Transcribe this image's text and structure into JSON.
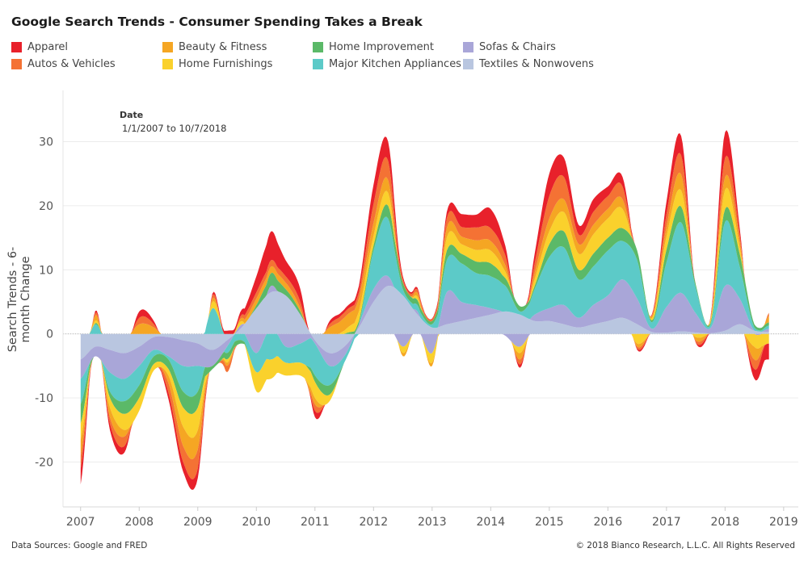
{
  "title": "Google Search Trends - Consumer Spending Takes a Break",
  "filter": {
    "label": "Date",
    "range": "1/1/2007 to 10/7/2018"
  },
  "footer": {
    "source": "Data Sources: Google and FRED",
    "copyright": "© 2018 Bianco Research, L.L.C. All Rights Reserved"
  },
  "legend": [
    {
      "name": "Apparel",
      "color": "#e8212b"
    },
    {
      "name": "Autos & Vehicles",
      "color": "#f47234"
    },
    {
      "name": "Beauty & Fitness",
      "color": "#f5a623"
    },
    {
      "name": "Home Furnishings",
      "color": "#fad12c"
    },
    {
      "name": "Home Improvement",
      "color": "#5bb968"
    },
    {
      "name": "Major Kitchen Appliances",
      "color": "#5ccac8"
    },
    {
      "name": "Sofas & Chairs",
      "color": "#a9a6d8"
    },
    {
      "name": "Textiles & Nonwovens",
      "color": "#b9c6e0"
    }
  ],
  "chart_data": {
    "type": "area",
    "stacking": "diverging",
    "title": "Google Search Trends - Consumer Spending Takes a Break",
    "xlabel": "",
    "ylabel": "Search Trends - 6-month Change",
    "xlim": [
      2006.7,
      2019.25
    ],
    "ylim": [
      -27,
      38
    ],
    "xticks": [
      2007,
      2008,
      2009,
      2010,
      2011,
      2012,
      2013,
      2014,
      2015,
      2016,
      2017,
      2018,
      2019
    ],
    "yticks": [
      -20,
      -10,
      0,
      10,
      20,
      30
    ],
    "grid": true,
    "legend_position": "top",
    "x": [
      2007.0,
      2007.25,
      2007.5,
      2007.75,
      2008.0,
      2008.25,
      2008.5,
      2008.75,
      2009.0,
      2009.25,
      2009.5,
      2009.75,
      2010.0,
      2010.25,
      2010.5,
      2010.75,
      2011.0,
      2011.25,
      2011.5,
      2011.75,
      2012.0,
      2012.25,
      2012.5,
      2012.75,
      2013.0,
      2013.25,
      2013.5,
      2013.75,
      2014.0,
      2014.25,
      2014.5,
      2014.75,
      2015.0,
      2015.25,
      2015.5,
      2015.75,
      2016.0,
      2016.25,
      2016.5,
      2016.75,
      2017.0,
      2017.25,
      2017.5,
      2017.75,
      2018.0,
      2018.25,
      2018.5,
      2018.75
    ],
    "series": [
      {
        "name": "Textiles & Nonwovens",
        "values": [
          -4,
          -2,
          -2.5,
          -3,
          -2,
          -0.5,
          -0.5,
          -1,
          -1.5,
          -2.5,
          -1,
          1,
          4,
          6.5,
          6,
          3,
          -1,
          -3,
          -2,
          1,
          5,
          7.5,
          6,
          3,
          1,
          1.5,
          2,
          2.5,
          3,
          3.5,
          3,
          2,
          2,
          1.5,
          1,
          1.5,
          2,
          2.5,
          1.5,
          0.3,
          0.2,
          0.4,
          0.2,
          0.1,
          0.5,
          1.5,
          0.5,
          0.3
        ]
      },
      {
        "name": "Sofas & Chairs",
        "values": [
          -3,
          -1.5,
          -3.5,
          -4,
          -3,
          -2,
          -3,
          -4,
          -3.5,
          -2.5,
          -1,
          0.5,
          -3,
          1,
          -2,
          -1.5,
          -0.5,
          -2,
          -1.5,
          0.5,
          2,
          1.5,
          -2,
          0.5,
          -3,
          5,
          3,
          2,
          1,
          -0.3,
          -2,
          1,
          2,
          3,
          1.5,
          3,
          4,
          6,
          4,
          0.5,
          4,
          6,
          3,
          0.8,
          7,
          4,
          0,
          0.5
        ]
      },
      {
        "name": "Major Kitchen Appliances",
        "values": [
          -4,
          1.5,
          -3,
          -3.5,
          -3,
          -1,
          -0.5,
          -4,
          -4,
          4,
          -1,
          -1,
          -3,
          -4,
          -2.5,
          -3,
          -5,
          -3,
          -1,
          0,
          6,
          9,
          1,
          1,
          0.5,
          5,
          6,
          5,
          5,
          4,
          0.5,
          4,
          8,
          9,
          6,
          6,
          7,
          6,
          6,
          1,
          7,
          11,
          4,
          0.5,
          10,
          5,
          0.5,
          0.5
        ]
      },
      {
        "name": "Home Improvement",
        "values": [
          -3,
          0.2,
          -1,
          -2,
          -2,
          -1.2,
          -1.5,
          -2.5,
          -2.5,
          -0.5,
          -1,
          -0.5,
          0.5,
          2,
          1,
          0.5,
          -1,
          -1.5,
          0,
          0.5,
          0.8,
          2,
          1,
          0.8,
          0.5,
          1.5,
          1.5,
          1.8,
          2,
          1.2,
          0.8,
          0.5,
          2,
          2.5,
          1.5,
          2,
          2,
          2,
          1.5,
          0.3,
          2,
          2.5,
          0.5,
          0.3,
          2,
          2,
          0.5,
          0.5
        ]
      },
      {
        "name": "Home Furnishings",
        "values": [
          -2.5,
          0.4,
          -1.5,
          -2.5,
          -2,
          -1,
          -1,
          -3,
          -3.5,
          1,
          -0.5,
          0.5,
          -3,
          -3,
          -2,
          -2,
          -2.5,
          -1,
          0.5,
          1.5,
          1.5,
          2,
          -1,
          0.5,
          -1.5,
          2,
          1.5,
          1.8,
          2,
          1,
          -1,
          1,
          2,
          3,
          2.5,
          3,
          3,
          3,
          -1.5,
          0.3,
          2,
          2.5,
          -0.5,
          0.3,
          3,
          1,
          -2,
          -1.5
        ]
      },
      {
        "name": "Beauty & Fitness",
        "values": [
          -2.5,
          0.8,
          -1.5,
          -1,
          1.5,
          1,
          -1.2,
          -3,
          -3,
          0.5,
          -0.5,
          0.5,
          1,
          1,
          1,
          0.5,
          -1,
          1,
          2,
          2,
          2,
          2,
          -0.5,
          0.6,
          -0.5,
          1.5,
          1.2,
          1.5,
          1.5,
          1,
          -1,
          1,
          2,
          2,
          1.5,
          1.5,
          1.5,
          1.5,
          -0.5,
          0.3,
          1.5,
          2.5,
          -0.5,
          0.2,
          2,
          1,
          -2,
          1
        ]
      },
      {
        "name": "Autos & Vehicles",
        "values": [
          -2,
          0.4,
          -1,
          -1.5,
          1,
          0.5,
          -1.5,
          -2.5,
          -3,
          0.5,
          -1,
          0.5,
          1,
          1,
          1,
          1,
          -1,
          0.5,
          0.8,
          1,
          3,
          3,
          0.5,
          0.5,
          0.3,
          1.5,
          1.5,
          2,
          2,
          1.5,
          -0.8,
          1.5,
          3.5,
          3.5,
          1.5,
          2,
          2,
          2,
          -0.3,
          0.2,
          2,
          3,
          -0.3,
          0.2,
          3,
          1,
          -1.5,
          0.5
        ]
      },
      {
        "name": "Apparel",
        "values": [
          -2.5,
          0.3,
          -1,
          -1,
          1,
          0.5,
          -1,
          -1.5,
          -1.5,
          0.3,
          0.5,
          0.8,
          2.5,
          4.5,
          2.5,
          2,
          -1,
          0.5,
          0.5,
          1,
          3,
          3,
          0.5,
          0.3,
          0.1,
          1,
          2,
          2,
          3,
          1.5,
          -0.5,
          1.5,
          3.5,
          3,
          1.5,
          2,
          1.5,
          1.5,
          -0.2,
          0.1,
          2,
          3,
          -0.1,
          0.1,
          4,
          1,
          -1.5,
          -2.5
        ]
      }
    ]
  }
}
